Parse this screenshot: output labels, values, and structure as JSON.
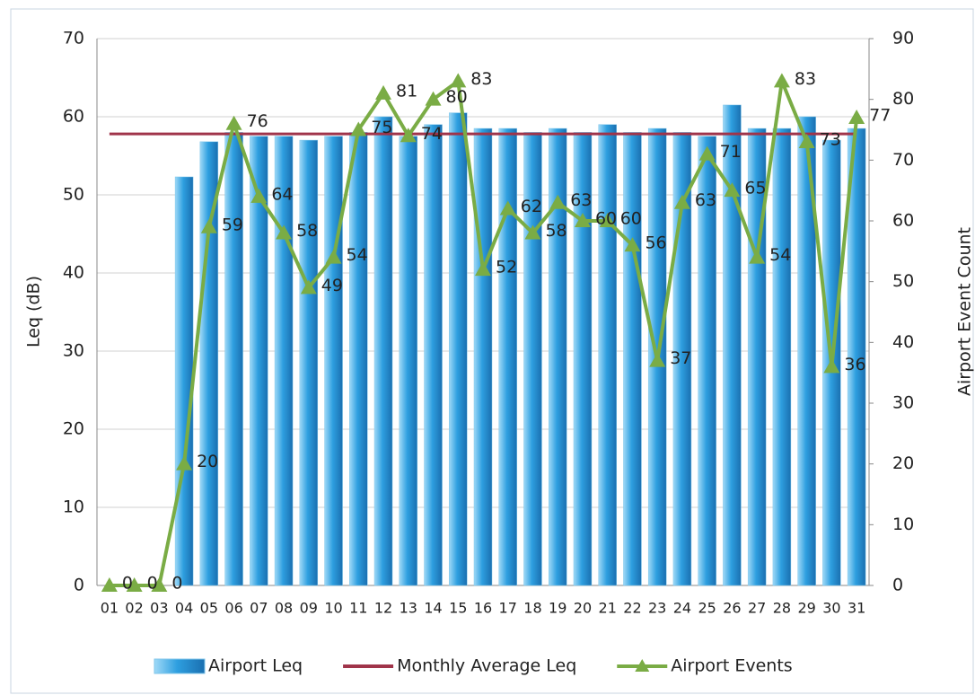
{
  "chart_data": {
    "type": "bar",
    "categories": [
      "01",
      "02",
      "03",
      "04",
      "05",
      "06",
      "07",
      "08",
      "09",
      "10",
      "11",
      "12",
      "13",
      "14",
      "15",
      "16",
      "17",
      "18",
      "19",
      "20",
      "21",
      "22",
      "23",
      "24",
      "25",
      "26",
      "27",
      "28",
      "29",
      "30",
      "31"
    ],
    "series": [
      {
        "name": "Airport Leq",
        "type": "bar",
        "color": "#2e9fe0",
        "values": [
          0,
          0,
          0,
          52.3,
          56.8,
          58,
          57.5,
          57.5,
          57,
          57.5,
          58,
          60,
          57.5,
          59,
          60.5,
          58.5,
          58.5,
          58,
          58.5,
          58,
          59,
          58,
          58.5,
          58,
          57.5,
          61.5,
          58.5,
          58.5,
          60,
          57,
          58.5
        ]
      },
      {
        "name": "Monthly Average Leq",
        "type": "line",
        "color": "#a0344a",
        "values": [
          57.8,
          57.8,
          57.8,
          57.8,
          57.8,
          57.8,
          57.8,
          57.8,
          57.8,
          57.8,
          57.8,
          57.8,
          57.8,
          57.8,
          57.8,
          57.8,
          57.8,
          57.8,
          57.8,
          57.8,
          57.8,
          57.8,
          57.8,
          57.8,
          57.8,
          57.8,
          57.8,
          57.8,
          57.8,
          57.8,
          57.8
        ]
      },
      {
        "name": "Airport Events",
        "type": "line",
        "axis": "y2",
        "color": "#7aac45",
        "markers": true,
        "data_labels": true,
        "values": [
          0,
          0,
          0,
          20,
          59,
          76,
          64,
          58,
          49,
          54,
          75,
          81,
          74,
          80,
          83,
          52,
          62,
          58,
          63,
          60,
          60,
          56,
          37,
          63,
          71,
          65,
          54,
          83,
          73,
          36,
          77
        ]
      }
    ],
    "ylabel": "Leq (dB)",
    "y2label": "Airport Event Count",
    "ylim": [
      0,
      70
    ],
    "yticks": [
      0,
      10,
      20,
      30,
      40,
      50,
      60,
      70
    ],
    "y2lim": [
      0,
      90
    ],
    "y2ticks": [
      0,
      10,
      20,
      30,
      40,
      50,
      60,
      70,
      80,
      90
    ],
    "grid": true,
    "legend": "bottom"
  }
}
